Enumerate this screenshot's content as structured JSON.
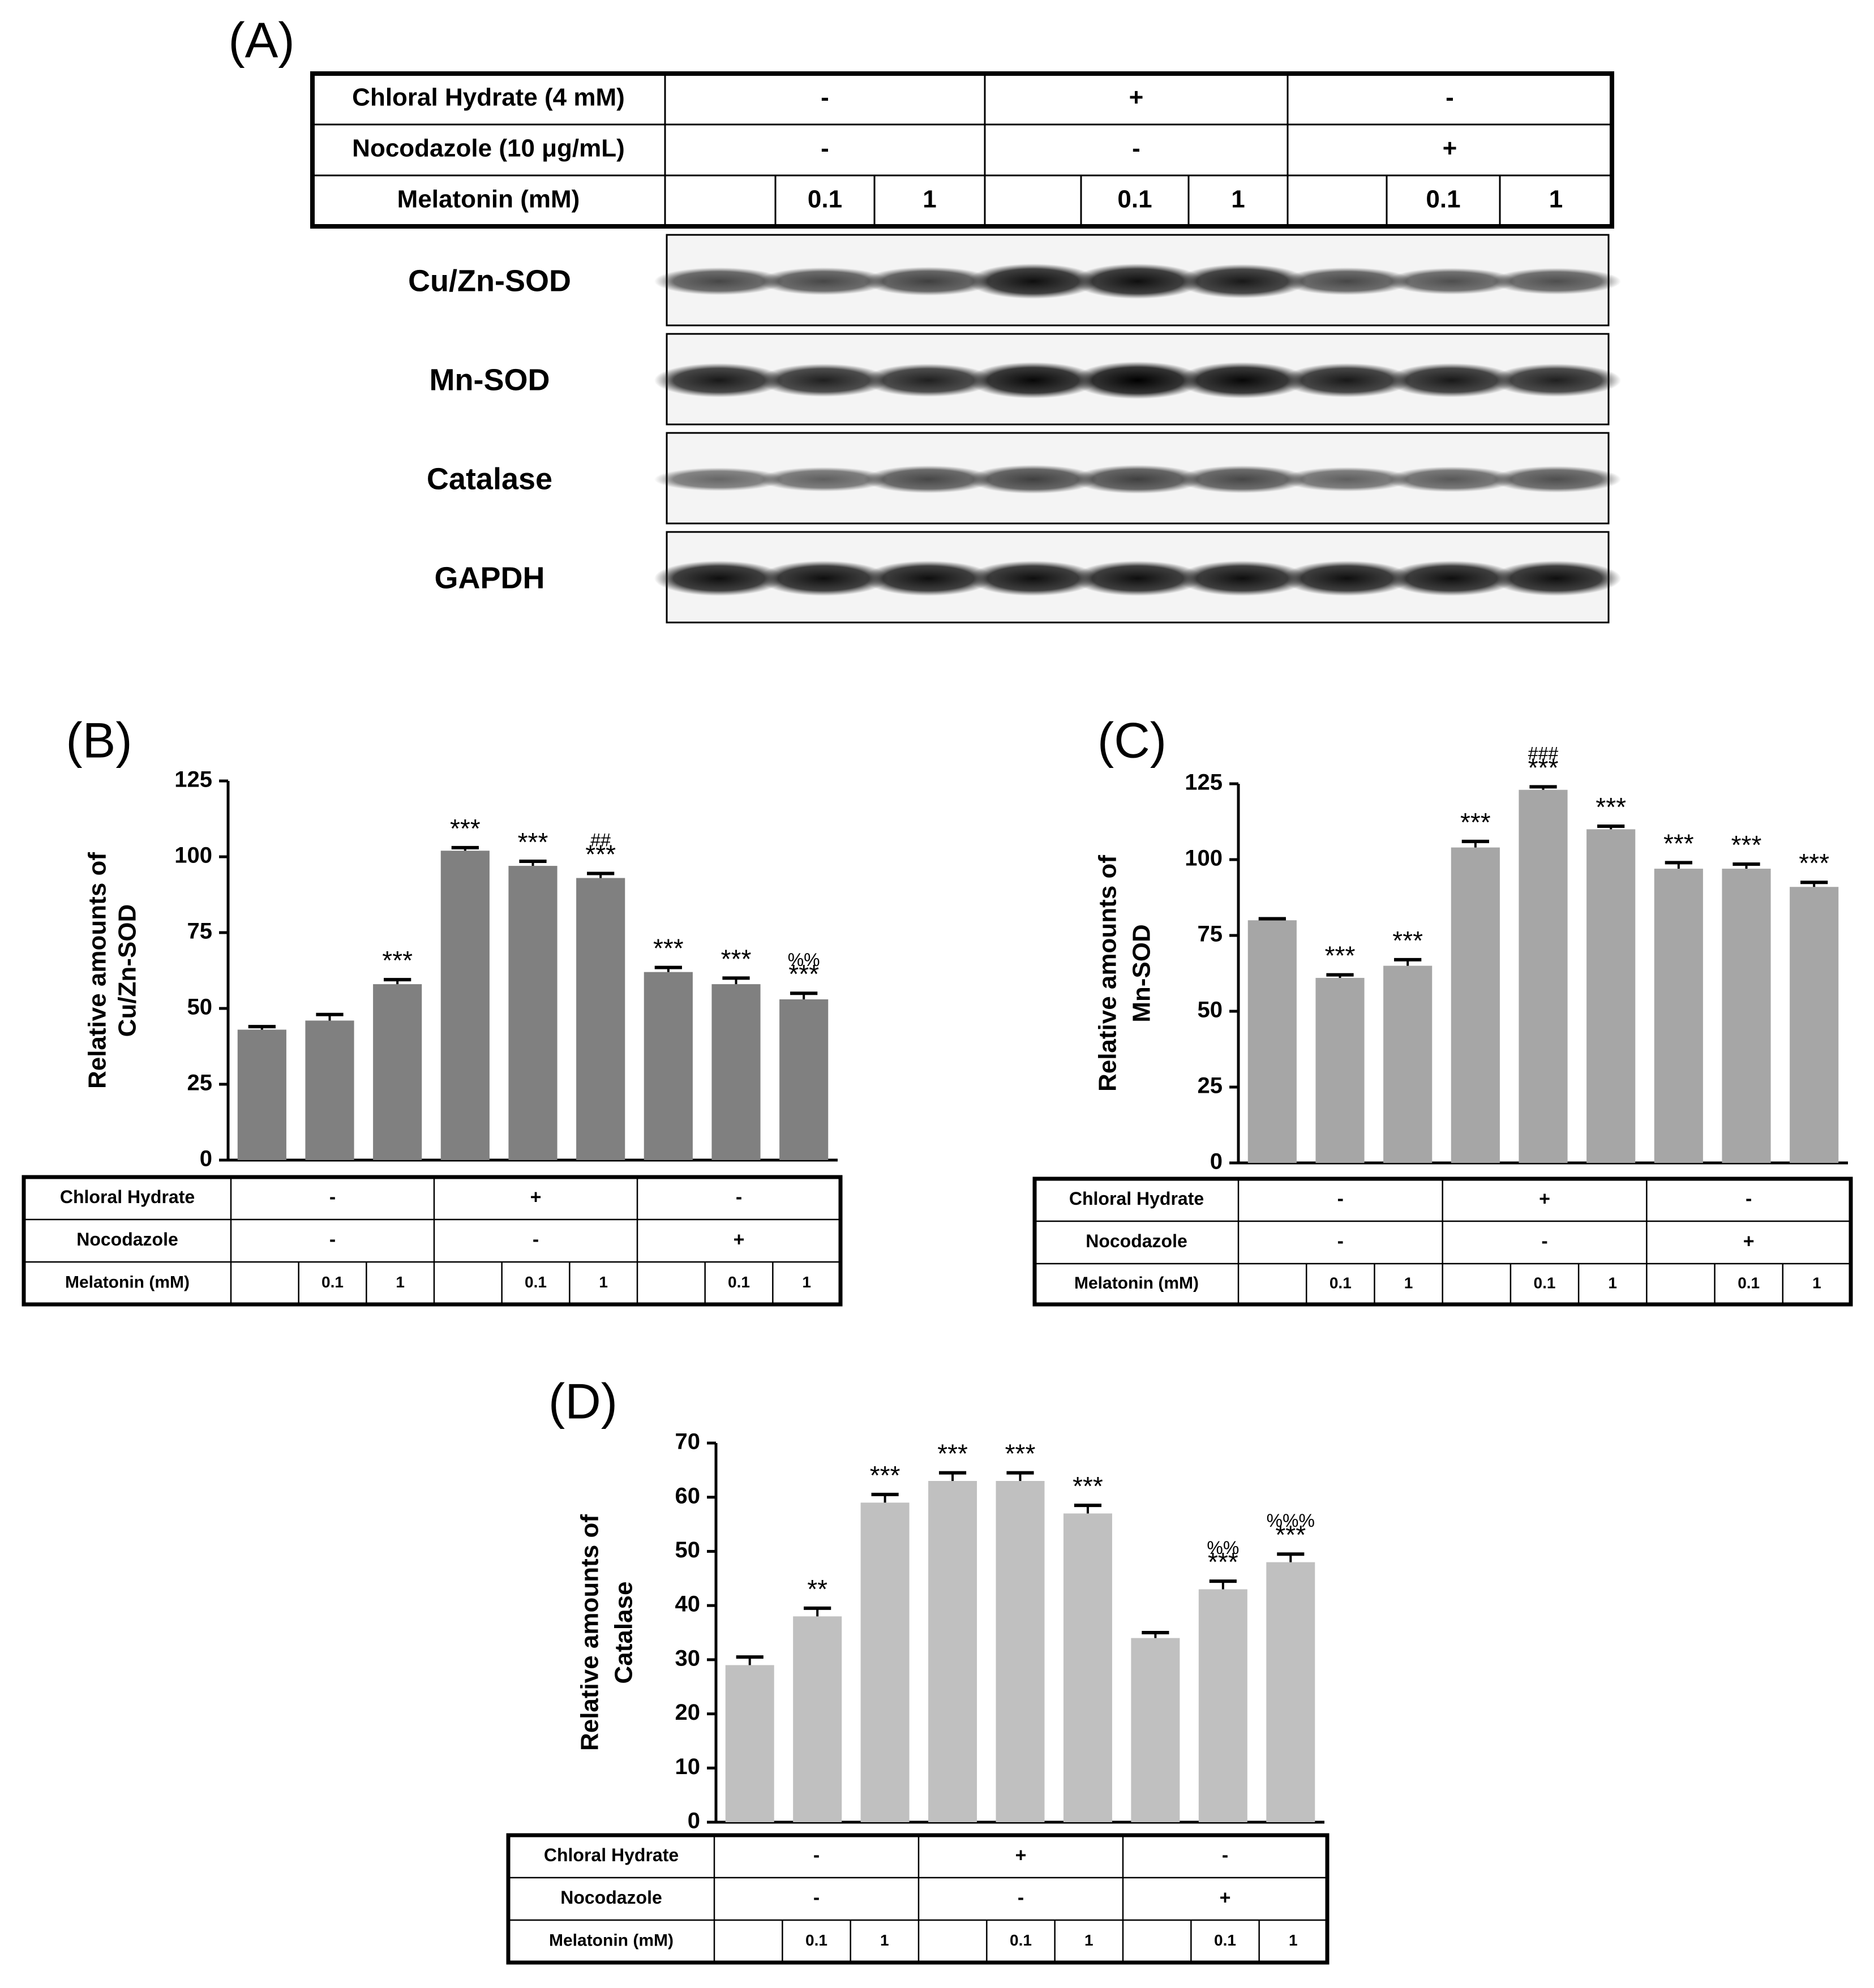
{
  "panel_a": {
    "label": "(A)",
    "rows": [
      {
        "label": "Chloral Hydrate  (4 mM)",
        "groups": [
          "-",
          "+",
          "-"
        ]
      },
      {
        "label": "Nocodazole (10 μg/mL)",
        "groups": [
          "-",
          "-",
          "+"
        ]
      }
    ],
    "melatonin_label": "Melatonin (mM)",
    "melatonin_values": [
      "",
      "0.1",
      "1",
      "",
      "0.1",
      "1",
      "",
      "0.1",
      "1"
    ],
    "blots": [
      {
        "name": "Cu/Zn-SOD",
        "intensity": [
          0.55,
          0.55,
          0.6,
          0.9,
          0.9,
          0.85,
          0.55,
          0.5,
          0.5
        ]
      },
      {
        "name": "Mn-SOD",
        "intensity": [
          0.85,
          0.8,
          0.8,
          0.95,
          1.0,
          0.95,
          0.85,
          0.85,
          0.8
        ]
      },
      {
        "name": "Catalase",
        "intensity": [
          0.35,
          0.4,
          0.55,
          0.6,
          0.6,
          0.55,
          0.4,
          0.45,
          0.5
        ]
      },
      {
        "name": "GAPDH",
        "intensity": [
          0.9,
          0.9,
          0.9,
          0.9,
          0.9,
          0.9,
          0.9,
          0.9,
          0.9
        ]
      }
    ]
  },
  "chart_data": [
    {
      "type": "bar",
      "panel": "(B)",
      "ylabel_lines": [
        "Relative amounts of",
        "Cu/Zn-SOD"
      ],
      "ylim": [
        0,
        125
      ],
      "yticks": [
        "0",
        "25",
        "50",
        "75",
        "100",
        "125"
      ],
      "values": [
        43,
        46,
        58,
        102,
        97,
        93,
        62,
        58,
        53
      ],
      "errors": [
        1,
        2,
        1.5,
        1,
        1.5,
        1.5,
        1.5,
        2,
        2
      ],
      "annotations": [
        [],
        [],
        [
          "***"
        ],
        [
          "***"
        ],
        [
          "***"
        ],
        [
          "##",
          "***"
        ],
        [
          "***"
        ],
        [
          "***"
        ],
        [
          "%%",
          "***"
        ]
      ],
      "bar_color": "#808080",
      "table": {
        "rows": [
          {
            "label": "Chloral Hydrate",
            "groups": [
              "-",
              "+",
              "-"
            ]
          },
          {
            "label": "Nocodazole",
            "groups": [
              "-",
              "-",
              "+"
            ]
          }
        ],
        "melatonin_label": "Melatonin (mM)",
        "melatonin_values": [
          "",
          "0.1",
          "1",
          "",
          "0.1",
          "1",
          "",
          "0.1",
          "1"
        ]
      }
    },
    {
      "type": "bar",
      "panel": "(C)",
      "ylabel_lines": [
        "Relative amounts of",
        "Mn-SOD"
      ],
      "ylim": [
        0,
        125
      ],
      "yticks": [
        "0",
        "25",
        "50",
        "75",
        "100",
        "125"
      ],
      "values": [
        80,
        61,
        65,
        104,
        123,
        110,
        97,
        97,
        91
      ],
      "errors": [
        0.5,
        1,
        2,
        2,
        1,
        1,
        2,
        1.5,
        1.5
      ],
      "annotations": [
        [],
        [
          "***"
        ],
        [
          "***"
        ],
        [
          "***"
        ],
        [
          "###",
          "***"
        ],
        [
          "***"
        ],
        [
          "***"
        ],
        [
          "***"
        ],
        [
          "***"
        ]
      ],
      "bar_color": "#a6a6a6",
      "table": {
        "rows": [
          {
            "label": "Chloral Hydrate",
            "groups": [
              "-",
              "+",
              "-"
            ]
          },
          {
            "label": "Nocodazole",
            "groups": [
              "-",
              "-",
              "+"
            ]
          }
        ],
        "melatonin_label": "Melatonin (mM)",
        "melatonin_values": [
          "",
          "0.1",
          "1",
          "",
          "0.1",
          "1",
          "",
          "0.1",
          "1"
        ]
      }
    },
    {
      "type": "bar",
      "panel": "(D)",
      "ylabel_lines": [
        "Relative amounts of",
        "Catalase"
      ],
      "ylim": [
        0,
        70
      ],
      "yticks": [
        "0",
        "10",
        "20",
        "30",
        "40",
        "50",
        "60",
        "70"
      ],
      "values": [
        29,
        38,
        59,
        63,
        63,
        57,
        34,
        43,
        48
      ],
      "errors": [
        1.5,
        1.5,
        1.5,
        1.5,
        1.5,
        1.5,
        1,
        1.5,
        1.5
      ],
      "annotations": [
        [],
        [
          "**"
        ],
        [
          "***"
        ],
        [
          "***"
        ],
        [
          "***"
        ],
        [
          "***"
        ],
        [],
        [
          "%%",
          "***"
        ],
        [
          "%%%",
          "***"
        ]
      ],
      "bar_color": "#c0c0c0",
      "table": {
        "rows": [
          {
            "label": "Chloral Hydrate",
            "groups": [
              "-",
              "+",
              "-"
            ]
          },
          {
            "label": "Nocodazole",
            "groups": [
              "-",
              "-",
              "+"
            ]
          }
        ],
        "melatonin_label": "Melatonin (mM)",
        "melatonin_values": [
          "",
          "0.1",
          "1",
          "",
          "0.1",
          "1",
          "",
          "0.1",
          "1"
        ]
      }
    }
  ]
}
